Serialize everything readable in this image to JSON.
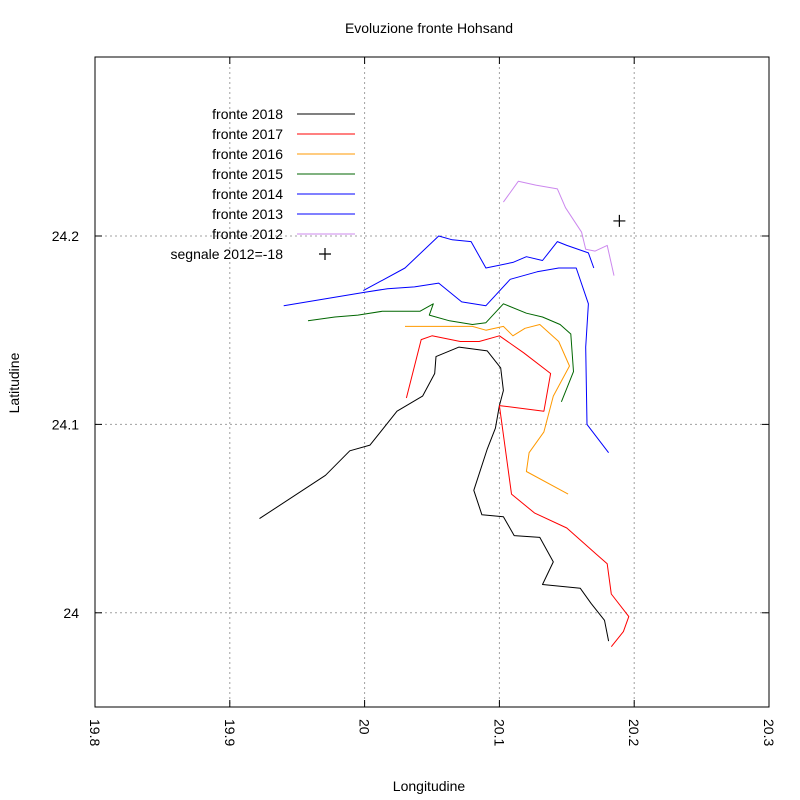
{
  "chart_data": {
    "type": "line",
    "title": "Evoluzione fronte Hohsand",
    "xlabel": "Longitudine",
    "ylabel": "Latitudine",
    "xlim": [
      19.8,
      20.3
    ],
    "ylim": [
      23.95,
      24.295
    ],
    "grid": true,
    "legend_position": "top-left",
    "x_ticks": [
      {
        "value": 19.8,
        "label": "19.8"
      },
      {
        "value": 19.9,
        "label": "19.9"
      },
      {
        "value": 20.0,
        "label": "20"
      },
      {
        "value": 20.1,
        "label": "20.1"
      },
      {
        "value": 20.2,
        "label": "20.2"
      },
      {
        "value": 20.3,
        "label": "20.3"
      }
    ],
    "y_ticks": [
      {
        "value": 24.0,
        "label": "24"
      },
      {
        "value": 24.1,
        "label": "24.1"
      },
      {
        "value": 24.2,
        "label": "24.2"
      }
    ],
    "series": [
      {
        "name": "fronte 2018",
        "color": "#000000",
        "points": [
          [
            20.181,
            23.985
          ],
          [
            20.178,
            23.996
          ],
          [
            20.168,
            24.005
          ],
          [
            20.16,
            24.013
          ],
          [
            20.132,
            24.015
          ],
          [
            20.14,
            24.027
          ],
          [
            20.13,
            24.04
          ],
          [
            20.111,
            24.041
          ],
          [
            20.103,
            24.051
          ],
          [
            20.087,
            24.052
          ],
          [
            20.081,
            24.065
          ],
          [
            20.091,
            24.087
          ],
          [
            20.097,
            24.098
          ],
          [
            20.1,
            24.11
          ],
          [
            20.103,
            24.118
          ],
          [
            20.101,
            24.13
          ],
          [
            20.091,
            24.139
          ],
          [
            20.07,
            24.141
          ],
          [
            20.053,
            24.136
          ],
          [
            20.052,
            24.127
          ],
          [
            20.043,
            24.115
          ],
          [
            20.024,
            24.107
          ],
          [
            20.004,
            24.089
          ],
          [
            19.989,
            24.086
          ],
          [
            19.971,
            24.073
          ],
          [
            19.922,
            24.05
          ]
        ]
      },
      {
        "name": "fronte 2017",
        "color": "#ff0000",
        "points": [
          [
            20.183,
            23.982
          ],
          [
            20.192,
            23.99
          ],
          [
            20.196,
            23.998
          ],
          [
            20.183,
            24.01
          ],
          [
            20.18,
            24.026
          ],
          [
            20.172,
            24.031
          ],
          [
            20.15,
            24.045
          ],
          [
            20.126,
            24.053
          ],
          [
            20.109,
            24.063
          ],
          [
            20.1,
            24.11
          ],
          [
            20.133,
            24.107
          ],
          [
            20.138,
            24.127
          ],
          [
            20.118,
            24.138
          ],
          [
            20.1,
            24.147
          ],
          [
            20.085,
            24.144
          ],
          [
            20.071,
            24.144
          ],
          [
            20.05,
            24.147
          ],
          [
            20.042,
            24.145
          ],
          [
            20.031,
            24.114
          ]
        ]
      },
      {
        "name": "fronte 2016",
        "color": "#ff9900",
        "points": [
          [
            20.151,
            24.063
          ],
          [
            20.12,
            24.075
          ],
          [
            20.122,
            24.085
          ],
          [
            20.133,
            24.096
          ],
          [
            20.14,
            24.115
          ],
          [
            20.152,
            24.131
          ],
          [
            20.144,
            24.144
          ],
          [
            20.13,
            24.153
          ],
          [
            20.119,
            24.151
          ],
          [
            20.11,
            24.147
          ],
          [
            20.103,
            24.152
          ],
          [
            20.09,
            24.15
          ],
          [
            20.08,
            24.152
          ],
          [
            20.067,
            24.152
          ],
          [
            20.043,
            24.152
          ],
          [
            20.03,
            24.152
          ]
        ]
      },
      {
        "name": "fronte 2015",
        "color": "#006600",
        "points": [
          [
            20.146,
            24.112
          ],
          [
            20.155,
            24.128
          ],
          [
            20.153,
            24.148
          ],
          [
            20.145,
            24.153
          ],
          [
            20.132,
            24.157
          ],
          [
            20.12,
            24.159
          ],
          [
            20.103,
            24.164
          ],
          [
            20.09,
            24.154
          ],
          [
            20.08,
            24.153
          ],
          [
            20.063,
            24.155
          ],
          [
            20.048,
            24.158
          ],
          [
            20.051,
            24.164
          ],
          [
            20.041,
            24.16
          ],
          [
            20.013,
            24.16
          ],
          [
            19.995,
            24.158
          ],
          [
            19.978,
            24.157
          ],
          [
            19.958,
            24.155
          ]
        ]
      },
      {
        "name": "fronte 2014",
        "color": "#0000ff",
        "points": [
          [
            20.181,
            24.085
          ],
          [
            20.165,
            24.1
          ],
          [
            20.164,
            24.141
          ],
          [
            20.166,
            24.164
          ],
          [
            20.157,
            24.183
          ],
          [
            20.144,
            24.183
          ],
          [
            20.128,
            24.181
          ],
          [
            20.108,
            24.177
          ],
          [
            20.09,
            24.163
          ],
          [
            20.072,
            24.165
          ],
          [
            20.055,
            24.175
          ],
          [
            20.037,
            24.173
          ],
          [
            20.017,
            24.172
          ],
          [
            19.999,
            24.17
          ],
          [
            19.94,
            24.163
          ]
        ]
      },
      {
        "name": "fronte 2013",
        "color": "#0000ff",
        "points": [
          [
            20.17,
            24.183
          ],
          [
            20.166,
            24.191
          ],
          [
            20.15,
            24.195
          ],
          [
            20.143,
            24.197
          ],
          [
            20.132,
            24.187
          ],
          [
            20.12,
            24.189
          ],
          [
            20.11,
            24.186
          ],
          [
            20.09,
            24.183
          ],
          [
            20.079,
            24.197
          ],
          [
            20.065,
            24.198
          ],
          [
            20.055,
            24.2
          ],
          [
            20.03,
            24.183
          ],
          [
            19.999,
            24.171
          ]
        ]
      },
      {
        "name": "fronte 2012",
        "color": "#cc88ee",
        "points": [
          [
            20.185,
            24.179
          ],
          [
            20.18,
            24.195
          ],
          [
            20.171,
            24.192
          ],
          [
            20.164,
            24.193
          ],
          [
            20.161,
            24.202
          ],
          [
            20.149,
            24.215
          ],
          [
            20.143,
            24.225
          ],
          [
            20.127,
            24.227
          ],
          [
            20.114,
            24.229
          ],
          [
            20.103,
            24.218
          ]
        ]
      },
      {
        "name": "segnale 2012=-18",
        "color": "#000000",
        "marker": "plus",
        "points": [
          [
            20.189,
            24.208
          ]
        ]
      }
    ]
  }
}
